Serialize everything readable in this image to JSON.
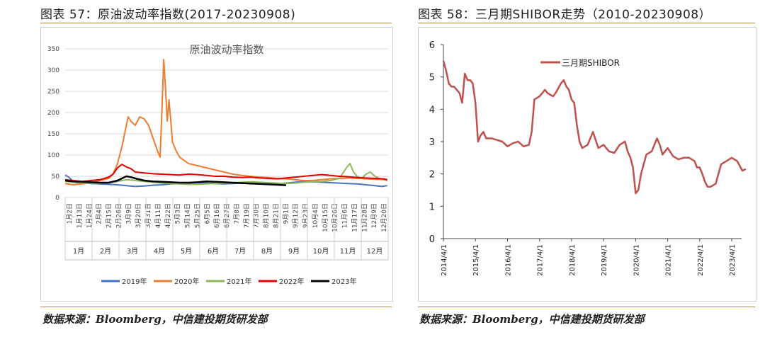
{
  "left": {
    "caption": "图表 57：原油波动率指数(2017-20230908)",
    "source": "数据来源：Bloomberg，中信建投期货研发部",
    "chart_data": {
      "type": "line",
      "title": "原油波动率指数",
      "ylim": [
        0,
        350
      ],
      "yticks": [
        0,
        50,
        100,
        150,
        200,
        250,
        300,
        350
      ],
      "grid": true,
      "legend_position": "bottom",
      "date_labels": [
        "1月2日",
        "1月13日",
        "1月24日",
        "2月4日",
        "2月15日",
        "2月26日",
        "3月9日",
        "3月20日",
        "3月31日",
        "4月11日",
        "4月22日",
        "5月3日",
        "5月14日",
        "5月25日",
        "6月5日",
        "6月16日",
        "6月27日",
        "7月8日",
        "7月19日",
        "7月30日",
        "8月10日",
        "8月21日",
        "9月1日",
        "9月12日",
        "9月23日",
        "10月4日",
        "10月15日",
        "10月26日",
        "11月6日",
        "11月17日",
        "11月28日",
        "12月9日",
        "12月20日"
      ],
      "months": [
        "1月",
        "2月",
        "3月",
        "4月",
        "5月",
        "6月",
        "7月",
        "8月",
        "9月",
        "10月",
        "11月",
        "12月"
      ],
      "series": [
        {
          "name": "2019年",
          "color": "#4472c4",
          "x": [
            1,
            5,
            9,
            13,
            20,
            30,
            40,
            50,
            60,
            70,
            80,
            90,
            100,
            110,
            120,
            130,
            140,
            150,
            160,
            170,
            180,
            190,
            200,
            210,
            220,
            230,
            240,
            250,
            260,
            270,
            280,
            290,
            300,
            310,
            320,
            330,
            340,
            350,
            358,
            364
          ],
          "y": [
            53,
            48,
            40,
            35,
            35,
            33,
            32,
            31,
            30,
            28,
            26,
            27,
            29,
            30,
            32,
            33,
            34,
            35,
            34,
            33,
            32,
            33,
            34,
            35,
            35,
            34,
            33,
            34,
            36,
            38,
            37,
            36,
            35,
            34,
            33,
            32,
            30,
            28,
            26,
            28
          ]
        },
        {
          "name": "2020年",
          "color": "#ed7d31",
          "x": [
            1,
            10,
            20,
            30,
            40,
            50,
            55,
            60,
            65,
            68,
            72,
            75,
            80,
            85,
            90,
            95,
            100,
            105,
            108,
            110,
            112,
            114,
            116,
            118,
            122,
            126,
            130,
            140,
            150,
            160,
            170,
            180,
            190,
            200,
            210,
            220,
            230,
            240,
            250,
            260,
            270,
            280,
            290,
            300,
            310,
            320,
            330,
            340,
            350,
            360,
            364
          ],
          "y": [
            33,
            30,
            32,
            35,
            40,
            45,
            55,
            80,
            120,
            150,
            190,
            180,
            170,
            190,
            185,
            170,
            140,
            110,
            95,
            200,
            325,
            260,
            180,
            230,
            130,
            110,
            95,
            80,
            75,
            70,
            65,
            60,
            55,
            52,
            50,
            48,
            47,
            45,
            44,
            42,
            40,
            40,
            42,
            44,
            45,
            46,
            45,
            44,
            43,
            42,
            40
          ]
        },
        {
          "name": "2021年",
          "color": "#8fb85c",
          "x": [
            1,
            10,
            20,
            30,
            40,
            50,
            60,
            70,
            80,
            90,
            100,
            110,
            120,
            130,
            140,
            150,
            160,
            170,
            180,
            190,
            200,
            210,
            220,
            230,
            240,
            250,
            260,
            270,
            280,
            290,
            300,
            310,
            318,
            322,
            326,
            330,
            335,
            340,
            345,
            350,
            355,
            360,
            364
          ],
          "y": [
            38,
            36,
            35,
            34,
            34,
            35,
            38,
            42,
            40,
            38,
            36,
            34,
            33,
            32,
            31,
            31,
            32,
            33,
            34,
            35,
            36,
            37,
            36,
            35,
            34,
            33,
            34,
            36,
            37,
            38,
            40,
            45,
            70,
            80,
            60,
            50,
            45,
            55,
            60,
            50,
            45,
            42,
            40
          ]
        },
        {
          "name": "2022年",
          "color": "#e00000",
          "x": [
            1,
            10,
            20,
            30,
            40,
            50,
            55,
            60,
            65,
            70,
            75,
            80,
            90,
            100,
            110,
            120,
            130,
            140,
            150,
            160,
            170,
            180,
            190,
            200,
            210,
            220,
            230,
            240,
            250,
            260,
            270,
            280,
            290,
            300,
            310,
            320,
            330,
            340,
            350,
            360,
            364
          ],
          "y": [
            42,
            40,
            38,
            40,
            42,
            48,
            55,
            70,
            78,
            72,
            68,
            60,
            58,
            56,
            55,
            54,
            53,
            55,
            54,
            52,
            50,
            50,
            48,
            47,
            48,
            46,
            45,
            44,
            46,
            48,
            50,
            52,
            54,
            52,
            50,
            49,
            47,
            46,
            45,
            44,
            42
          ]
        },
        {
          "name": "2023年",
          "color": "#000000",
          "x": [
            1,
            10,
            20,
            30,
            40,
            50,
            60,
            65,
            70,
            75,
            80,
            90,
            100,
            110,
            120,
            130,
            140,
            150,
            160,
            170,
            180,
            190,
            200,
            210,
            220,
            230,
            240,
            250
          ],
          "y": [
            40,
            38,
            37,
            36,
            35,
            35,
            40,
            45,
            50,
            48,
            45,
            40,
            38,
            37,
            36,
            35,
            35,
            36,
            38,
            37,
            36,
            35,
            34,
            33,
            32,
            31,
            30,
            29
          ]
        }
      ]
    }
  },
  "right": {
    "caption": "图表 58：三月期SHIBOR走势（2010-20230908）",
    "source": "数据来源：Bloomberg，中信建投期货研发部",
    "chart_data": {
      "type": "line",
      "ylim": [
        0,
        6
      ],
      "yticks": [
        0,
        1,
        2,
        3,
        4,
        5,
        6
      ],
      "grid": false,
      "legend_position": "top-left",
      "xticks": [
        "2014/4/1",
        "2015/4/1",
        "2016/4/1",
        "2017/4/1",
        "2018/4/1",
        "2019/4/1",
        "2020/4/1",
        "2021/4/1",
        "2022/4/1",
        "2023/4/1"
      ],
      "series": [
        {
          "name": "三月期SHIBOR",
          "color": "#c0504d",
          "x": [
            "2014-04-01",
            "2014-05-01",
            "2014-06-01",
            "2014-07-01",
            "2014-08-01",
            "2014-09-01",
            "2014-10-01",
            "2014-11-01",
            "2014-12-01",
            "2015-01-01",
            "2015-02-01",
            "2015-03-01",
            "2015-04-01",
            "2015-05-01",
            "2015-06-01",
            "2015-07-01",
            "2015-08-01",
            "2015-10-01",
            "2015-12-01",
            "2016-02-01",
            "2016-04-01",
            "2016-06-01",
            "2016-08-01",
            "2016-10-01",
            "2016-12-01",
            "2017-01-01",
            "2017-02-01",
            "2017-04-01",
            "2017-06-01",
            "2017-07-01",
            "2017-09-01",
            "2017-10-01",
            "2017-12-01",
            "2018-01-01",
            "2018-02-01",
            "2018-03-01",
            "2018-04-01",
            "2018-05-01",
            "2018-06-01",
            "2018-07-01",
            "2018-08-01",
            "2018-10-01",
            "2018-12-01",
            "2019-02-01",
            "2019-04-01",
            "2019-06-01",
            "2019-08-01",
            "2019-10-01",
            "2019-12-01",
            "2020-01-01",
            "2020-02-01",
            "2020-03-01",
            "2020-04-01",
            "2020-05-01",
            "2020-06-01",
            "2020-08-01",
            "2020-10-01",
            "2020-12-01",
            "2021-01-01",
            "2021-02-01",
            "2021-04-01",
            "2021-06-01",
            "2021-08-01",
            "2021-10-01",
            "2021-12-01",
            "2022-02-01",
            "2022-03-01",
            "2022-04-01",
            "2022-05-01",
            "2022-06-01",
            "2022-07-01",
            "2022-08-01",
            "2022-10-01",
            "2022-12-01",
            "2023-02-01",
            "2023-04-01",
            "2023-06-01",
            "2023-08-01",
            "2023-09-08"
          ],
          "y": [
            5.5,
            5.2,
            4.8,
            4.7,
            4.7,
            4.6,
            4.5,
            4.2,
            5.1,
            4.9,
            4.9,
            4.8,
            4.2,
            3.0,
            3.2,
            3.3,
            3.1,
            3.1,
            3.05,
            3.0,
            2.85,
            2.95,
            3.0,
            2.85,
            2.9,
            3.3,
            4.3,
            4.4,
            4.6,
            4.5,
            4.4,
            4.5,
            4.8,
            4.9,
            4.7,
            4.6,
            4.3,
            4.2,
            3.5,
            3.0,
            2.8,
            2.9,
            3.3,
            2.8,
            2.9,
            2.7,
            2.65,
            2.9,
            3.0,
            2.7,
            2.5,
            2.2,
            1.4,
            1.5,
            2.0,
            2.6,
            2.7,
            3.1,
            2.9,
            2.6,
            2.8,
            2.55,
            2.45,
            2.5,
            2.5,
            2.4,
            2.2,
            2.2,
            2.0,
            1.75,
            1.6,
            1.6,
            1.7,
            2.3,
            2.4,
            2.5,
            2.4,
            2.1,
            2.15
          ]
        }
      ]
    }
  }
}
